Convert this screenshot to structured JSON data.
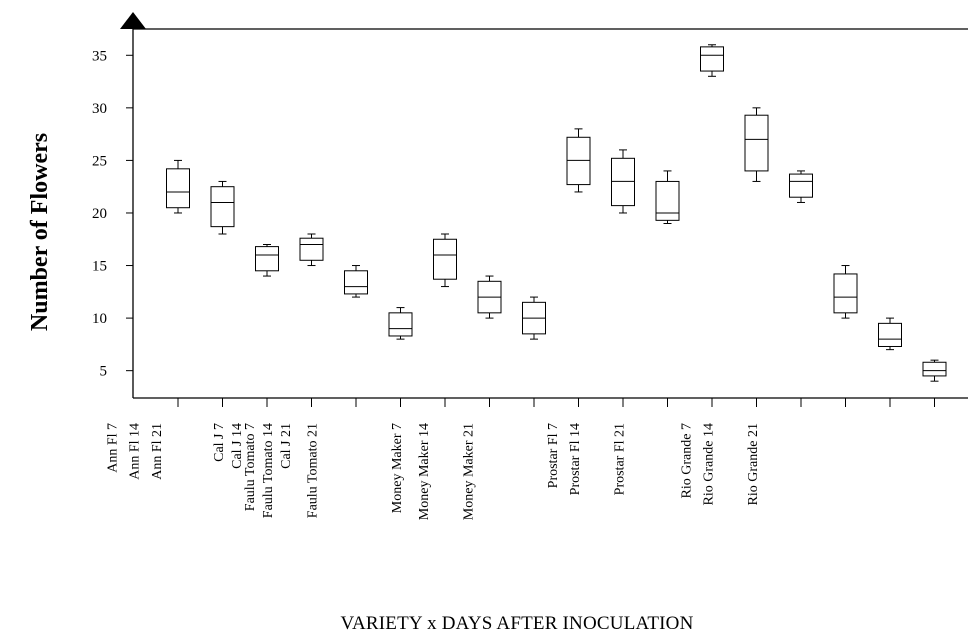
{
  "chart_data": {
    "type": "box",
    "ylabel": "Number of Flowers",
    "xlabel": "VARIETY x  DAYS AFTER INOCULATION",
    "yticks": [
      5,
      10,
      15,
      20,
      25,
      30,
      35
    ],
    "ylim": [
      2.4,
      37.5
    ],
    "tick_count": 19,
    "category_labels": [
      {
        "text": "Ann Fl 7",
        "tick": -1.5
      },
      {
        "text": "Ann Fl 14",
        "tick": -1.0
      },
      {
        "text": "Ann Fl 21",
        "tick": -0.5
      },
      {
        "text": "Cal J 7",
        "tick": 0.9
      },
      {
        "text": "Cal J 14",
        "tick": 1.3
      },
      {
        "text": "Faulu Tomato 7",
        "tick": 1.6
      },
      {
        "text": "Faulu Tomato 14",
        "tick": 2.0
      },
      {
        "text": "Cal J 21",
        "tick": 2.4
      },
      {
        "text": "Faulu Tomato 21",
        "tick": 3.0
      },
      {
        "text": "Money Maker 7",
        "tick": 4.9
      },
      {
        "text": "Money Maker 14",
        "tick": 5.5
      },
      {
        "text": "Money Maker 21",
        "tick": 6.5
      },
      {
        "text": "Prostar Fl 7",
        "tick": 8.4
      },
      {
        "text": "Prostar Fl 14",
        "tick": 8.9
      },
      {
        "text": "Prostar Fl 21",
        "tick": 9.9
      },
      {
        "text": "Rio Grande 7",
        "tick": 11.4
      },
      {
        "text": "Rio Grande 14",
        "tick": 11.9
      },
      {
        "text": "Rio Grande 21",
        "tick": 12.9
      }
    ],
    "boxes": [
      {
        "pos": 0,
        "min": 20,
        "q1": 20.5,
        "median": 22,
        "q3": 24.2,
        "max": 25
      },
      {
        "pos": 1,
        "min": 18,
        "q1": 18.7,
        "median": 21,
        "q3": 22.5,
        "max": 23
      },
      {
        "pos": 2,
        "min": 14,
        "q1": 14.5,
        "median": 16,
        "q3": 16.8,
        "max": 17
      },
      {
        "pos": 3,
        "min": 15,
        "q1": 15.5,
        "median": 17,
        "q3": 17.6,
        "max": 18
      },
      {
        "pos": 4,
        "min": 12,
        "q1": 12.3,
        "median": 13,
        "q3": 14.5,
        "max": 15
      },
      {
        "pos": 5,
        "min": 8,
        "q1": 8.3,
        "median": 9,
        "q3": 10.5,
        "max": 11
      },
      {
        "pos": 6,
        "min": 13,
        "q1": 13.7,
        "median": 16,
        "q3": 17.5,
        "max": 18
      },
      {
        "pos": 7,
        "min": 10,
        "q1": 10.5,
        "median": 12,
        "q3": 13.5,
        "max": 14
      },
      {
        "pos": 8,
        "min": 8,
        "q1": 8.5,
        "median": 10,
        "q3": 11.5,
        "max": 12
      },
      {
        "pos": 9,
        "min": 22,
        "q1": 22.7,
        "median": 25,
        "q3": 27.2,
        "max": 28
      },
      {
        "pos": 10,
        "min": 20,
        "q1": 20.7,
        "median": 23,
        "q3": 25.2,
        "max": 26
      },
      {
        "pos": 11,
        "min": 19,
        "q1": 19.3,
        "median": 20,
        "q3": 23,
        "max": 24
      },
      {
        "pos": 12,
        "min": 33,
        "q1": 33.5,
        "median": 35,
        "q3": 35.8,
        "max": 36
      },
      {
        "pos": 13,
        "min": 23,
        "q1": 24,
        "median": 27,
        "q3": 29.3,
        "max": 30
      },
      {
        "pos": 14,
        "min": 21,
        "q1": 21.5,
        "median": 23,
        "q3": 23.7,
        "max": 24
      },
      {
        "pos": 15,
        "min": 10,
        "q1": 10.5,
        "median": 12,
        "q3": 14.2,
        "max": 15
      },
      {
        "pos": 16,
        "min": 7,
        "q1": 7.3,
        "median": 8,
        "q3": 9.5,
        "max": 10
      },
      {
        "pos": 17,
        "min": 4,
        "q1": 4.5,
        "median": 5,
        "q3": 5.8,
        "max": 6
      }
    ]
  }
}
